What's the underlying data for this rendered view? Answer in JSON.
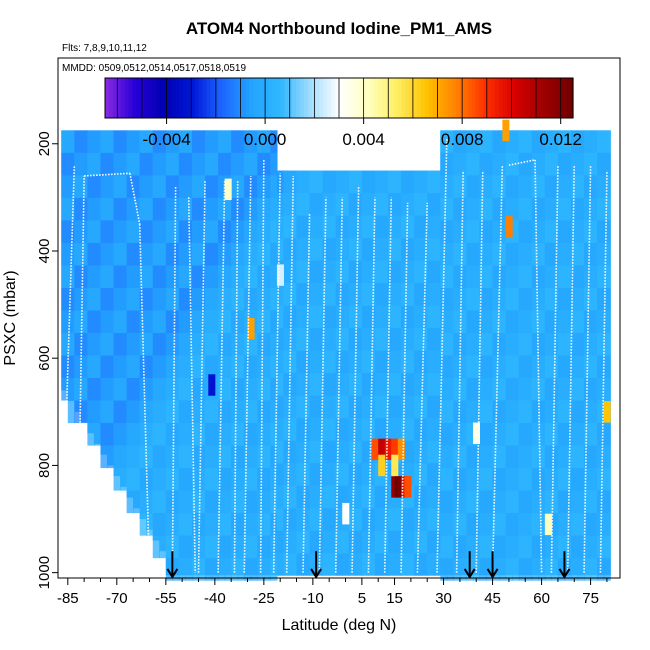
{
  "chart_data": {
    "type": "heatmap",
    "title": "ATOM4 Northbound Iodine_PM1_AMS",
    "flights_note": "Flts: 7,8,9,10,11,12",
    "dates_note": "MMDD: 0509,0512,0514,0517,0518,0519",
    "xlabel": "Latitude (deg N)",
    "ylabel": "PSXC (mbar)",
    "xlim": [
      -88,
      84
    ],
    "ylim": [
      1010,
      40
    ],
    "x_ticks": [
      -85,
      -70,
      -55,
      -40,
      -25,
      -10,
      5,
      15,
      30,
      45,
      60,
      75
    ],
    "y_ticks": [
      200,
      400,
      600,
      800,
      1000
    ],
    "colorbar": {
      "range": [
        -0.0065,
        0.0125
      ],
      "ticks": [
        -0.004,
        0.0,
        0.004,
        0.008,
        0.012
      ],
      "tick_labels": [
        "-0.004",
        "0.000",
        "0.004",
        "0.008",
        "0.012"
      ],
      "colors": [
        "#8a2be2",
        "#2a00d8",
        "#0000b0",
        "#0018d8",
        "#1e66ff",
        "#23a3ff",
        "#2fb8ff",
        "#9fdcff",
        "#ffffff",
        "#ffffc0",
        "#ffee60",
        "#ffc200",
        "#ff8200",
        "#ff3000",
        "#d80000",
        "#a00000",
        "#6e0000"
      ]
    },
    "background_value": 0.0,
    "highlights": [
      {
        "lat": 15,
        "psxc": 840,
        "value": 0.0115
      },
      {
        "lat": 16,
        "psxc": 840,
        "value": 0.0125
      },
      {
        "lat": 17,
        "psxc": 840,
        "value": 0.0122
      },
      {
        "lat": 18,
        "psxc": 840,
        "value": 0.0098
      },
      {
        "lat": 19,
        "psxc": 840,
        "value": 0.0085
      },
      {
        "lat": 9,
        "psxc": 770,
        "value": 0.0085
      },
      {
        "lat": 11,
        "psxc": 770,
        "value": 0.0105
      },
      {
        "lat": 13,
        "psxc": 770,
        "value": 0.0095
      },
      {
        "lat": 15,
        "psxc": 770,
        "value": 0.0088
      },
      {
        "lat": 17,
        "psxc": 770,
        "value": 0.0075
      },
      {
        "lat": 11,
        "psxc": 800,
        "value": 0.0062
      },
      {
        "lat": 15,
        "psxc": 800,
        "value": 0.0055
      },
      {
        "lat": -29,
        "psxc": 545,
        "value": 0.0072
      },
      {
        "lat": -41,
        "psxc": 650,
        "value": -0.0032
      },
      {
        "lat": 49,
        "psxc": 175,
        "value": 0.0072
      },
      {
        "lat": 50,
        "psxc": 355,
        "value": 0.0078
      },
      {
        "lat": -36,
        "psxc": 285,
        "value": 0.004
      },
      {
        "lat": 80,
        "psxc": 700,
        "value": 0.0065
      },
      {
        "lat": 62,
        "psxc": 910,
        "value": 0.0042
      },
      {
        "lat": 40,
        "psxc": 740,
        "value": 0.0035
      },
      {
        "lat": -20,
        "psxc": 445,
        "value": 0.0025
      },
      {
        "lat": 0,
        "psxc": 890,
        "value": 0.003
      }
    ],
    "flight_profiles": [
      [
        -87,
        1000,
        -83,
        240
      ],
      [
        -82,
        1000,
        -80,
        260
      ],
      [
        -80,
        260,
        -66,
        255
      ],
      [
        -66,
        255,
        -63,
        350
      ],
      [
        -63,
        350,
        -60,
        1000
      ],
      [
        -53,
        1000,
        -52,
        280
      ],
      [
        -48,
        300,
        -46,
        1000
      ],
      [
        -45,
        1000,
        -43,
        270
      ],
      [
        -39,
        1000,
        -37,
        270
      ],
      [
        -34,
        1000,
        -33,
        270
      ],
      [
        -31,
        1000,
        -29,
        260
      ],
      [
        -26,
        1000,
        -25,
        230
      ],
      [
        -22,
        1000,
        -20,
        255
      ],
      [
        -18,
        1000,
        -16,
        260
      ],
      [
        -13,
        1000,
        -11,
        330
      ],
      [
        -8,
        1000,
        -6,
        300
      ],
      [
        -3,
        1000,
        -1,
        300
      ],
      [
        2,
        1000,
        4,
        280
      ],
      [
        7,
        1000,
        9,
        300
      ],
      [
        12,
        1000,
        14,
        300
      ],
      [
        17,
        1000,
        19,
        310
      ],
      [
        22,
        1000,
        25,
        310
      ],
      [
        28,
        1000,
        31,
        190
      ],
      [
        34,
        1000,
        36,
        250
      ],
      [
        40,
        1000,
        42,
        250
      ],
      [
        45,
        1000,
        48,
        240
      ],
      [
        50,
        240,
        58,
        230
      ],
      [
        58,
        230,
        60,
        1000
      ],
      [
        63,
        1000,
        65,
        240
      ],
      [
        68,
        1000,
        70,
        240
      ],
      [
        73,
        1000,
        75,
        240
      ],
      [
        78,
        1000,
        80,
        250
      ]
    ],
    "arrows_lat": [
      -53,
      -9,
      38,
      45,
      67
    ]
  }
}
